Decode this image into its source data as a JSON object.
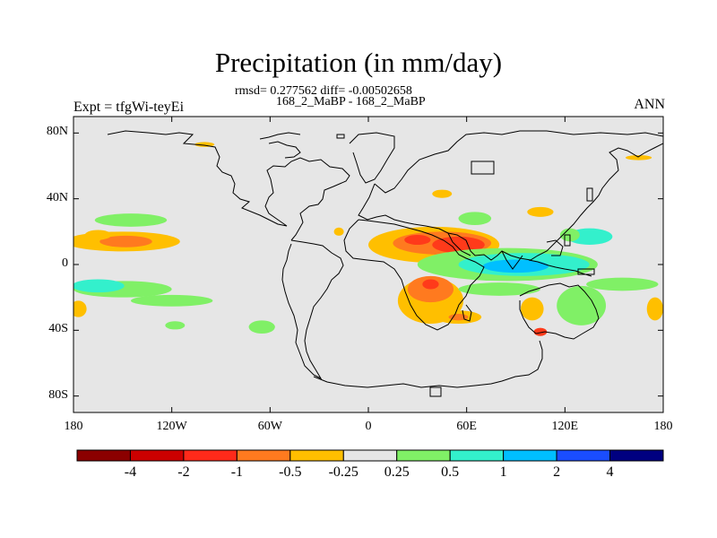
{
  "title": "Precipitation (in mm/day)",
  "stats_line": "rmsd= 0.277562 diff= -0.00502658",
  "cases_line": "168_2_MaBP - 168_2_MaBP",
  "expt_label": "Expt = tfgWi-teyEi",
  "season_label": "ANN",
  "map": {
    "lon_range": [
      -180,
      180
    ],
    "lat_range": [
      -90,
      90
    ],
    "x_ticks": [
      {
        "lon": -180,
        "label": "180"
      },
      {
        "lon": -120,
        "label": "120W"
      },
      {
        "lon": -60,
        "label": "60W"
      },
      {
        "lon": 0,
        "label": "0"
      },
      {
        "lon": 60,
        "label": "60E"
      },
      {
        "lon": 120,
        "label": "120E"
      },
      {
        "lon": 180,
        "label": "180"
      }
    ],
    "y_ticks": [
      {
        "lat": 80,
        "label": "80N"
      },
      {
        "lat": 40,
        "label": "40N"
      },
      {
        "lat": 0,
        "label": "0"
      },
      {
        "lat": -40,
        "label": "40S"
      },
      {
        "lat": -80,
        "label": "80S"
      }
    ],
    "background_color": "#e6e6e6",
    "anomaly_regions": [
      {
        "level": "-0.5",
        "color": "#ffbf00",
        "lon": -150,
        "lat": 14,
        "rx": 35,
        "ry": 6
      },
      {
        "level": "-1",
        "color": "#ff7a1f",
        "lon": -148,
        "lat": 14,
        "rx": 16,
        "ry": 3.5
      },
      {
        "level": "0.25",
        "color": "#80f066",
        "lon": -145,
        "lat": 27,
        "rx": 22,
        "ry": 4
      },
      {
        "level": "0.25",
        "color": "#80f066",
        "lon": -150,
        "lat": -15,
        "rx": 30,
        "ry": 5
      },
      {
        "level": "0.5",
        "color": "#33f0cc",
        "lon": -165,
        "lat": -13,
        "rx": 16,
        "ry": 4
      },
      {
        "level": "0.25",
        "color": "#80f066",
        "lon": -120,
        "lat": -22,
        "rx": 25,
        "ry": 3.5
      },
      {
        "level": "-0.5",
        "color": "#ffbf00",
        "lon": -177,
        "lat": -27,
        "rx": 5,
        "ry": 5
      },
      {
        "level": "0.25",
        "color": "#80f066",
        "lon": -65,
        "lat": -38,
        "rx": 8,
        "ry": 4
      },
      {
        "level": "0.25",
        "color": "#80f066",
        "lon": -118,
        "lat": -37,
        "rx": 6,
        "ry": 2.5
      },
      {
        "level": "-0.5",
        "color": "#ffbf00",
        "lon": 40,
        "lat": 12,
        "rx": 40,
        "ry": 11
      },
      {
        "level": "-1",
        "color": "#ff7a1f",
        "lon": 45,
        "lat": 13,
        "rx": 30,
        "ry": 7
      },
      {
        "level": "-2",
        "color": "#ff3a1a",
        "lon": 55,
        "lat": 12,
        "rx": 16,
        "ry": 5
      },
      {
        "level": "-2",
        "color": "#ff3a1a",
        "lon": 30,
        "lat": 15,
        "rx": 8,
        "ry": 3
      },
      {
        "level": "0.25",
        "color": "#80f066",
        "lon": 85,
        "lat": 0,
        "rx": 55,
        "ry": 10
      },
      {
        "level": "0.5",
        "color": "#33f0cc",
        "lon": 95,
        "lat": 0,
        "rx": 40,
        "ry": 7
      },
      {
        "level": "1",
        "color": "#00bfff",
        "lon": 90,
        "lat": -1,
        "rx": 20,
        "ry": 4
      },
      {
        "level": "0.5",
        "color": "#33f0cc",
        "lon": 135,
        "lat": 17,
        "rx": 14,
        "ry": 5
      },
      {
        "level": "0.25",
        "color": "#80f066",
        "lon": 123,
        "lat": 18,
        "rx": 6,
        "ry": 4
      },
      {
        "level": "-0.5",
        "color": "#ffbf00",
        "lon": 38,
        "lat": -22,
        "rx": 20,
        "ry": 14
      },
      {
        "level": "-1",
        "color": "#ff7a1f",
        "lon": 38,
        "lat": -15,
        "rx": 14,
        "ry": 8
      },
      {
        "level": "-2",
        "color": "#ff3a1a",
        "lon": 38,
        "lat": -12,
        "rx": 5,
        "ry": 3
      },
      {
        "level": "-0.5",
        "color": "#ffbf00",
        "lon": 55,
        "lat": -32,
        "rx": 14,
        "ry": 4
      },
      {
        "level": "-1",
        "color": "#ff7a1f",
        "lon": 55,
        "lat": -32,
        "rx": 6,
        "ry": 2
      },
      {
        "level": "0.25",
        "color": "#80f066",
        "lon": 80,
        "lat": -15,
        "rx": 25,
        "ry": 4
      },
      {
        "level": "0.25",
        "color": "#80f066",
        "lon": 130,
        "lat": -25,
        "rx": 15,
        "ry": 12
      },
      {
        "level": "-0.5",
        "color": "#ffbf00",
        "lon": 100,
        "lat": -27,
        "rx": 7,
        "ry": 7
      },
      {
        "level": "-0.5",
        "color": "#ffbf00",
        "lon": 175,
        "lat": -27,
        "rx": 5,
        "ry": 7
      },
      {
        "level": "-2",
        "color": "#ff3a1a",
        "lon": 105,
        "lat": -41,
        "rx": 4,
        "ry": 2.5
      },
      {
        "level": "0.25",
        "color": "#80f066",
        "lon": 155,
        "lat": -12,
        "rx": 22,
        "ry": 4
      },
      {
        "level": "-0.5",
        "color": "#ffbf00",
        "lon": 105,
        "lat": 32,
        "rx": 8,
        "ry": 3
      },
      {
        "level": "-0.5",
        "color": "#ffbf00",
        "lon": 45,
        "lat": 43,
        "rx": 6,
        "ry": 2.5
      },
      {
        "level": "-0.5",
        "color": "#ffbf00",
        "lon": -18,
        "lat": 20,
        "rx": 3,
        "ry": 2.5
      },
      {
        "level": "0.25",
        "color": "#80f066",
        "lon": 65,
        "lat": 28,
        "rx": 10,
        "ry": 4
      },
      {
        "level": "-0.5",
        "color": "#ffbf00",
        "lon": -165,
        "lat": 18,
        "rx": 8,
        "ry": 3
      },
      {
        "level": "-0.5",
        "color": "#ffbf00",
        "lon": -100,
        "lat": 73,
        "rx": 6,
        "ry": 1.5
      },
      {
        "level": "-0.5",
        "color": "#ffbf00",
        "lon": 165,
        "lat": 65,
        "rx": 8,
        "ry": 1.5
      }
    ]
  },
  "colorbar": {
    "colors": [
      "#8b0000",
      "#cc0000",
      "#ff2a1a",
      "#ff7a1f",
      "#ffbf00",
      "#e6e6e6",
      "#80f066",
      "#33f0cc",
      "#00bfff",
      "#1a4dff",
      "#000080"
    ],
    "labels": [
      "-4",
      "-2",
      "-1",
      "-0.5",
      "-0.25",
      "0.25",
      "0.5",
      "1",
      "2",
      "4"
    ]
  }
}
